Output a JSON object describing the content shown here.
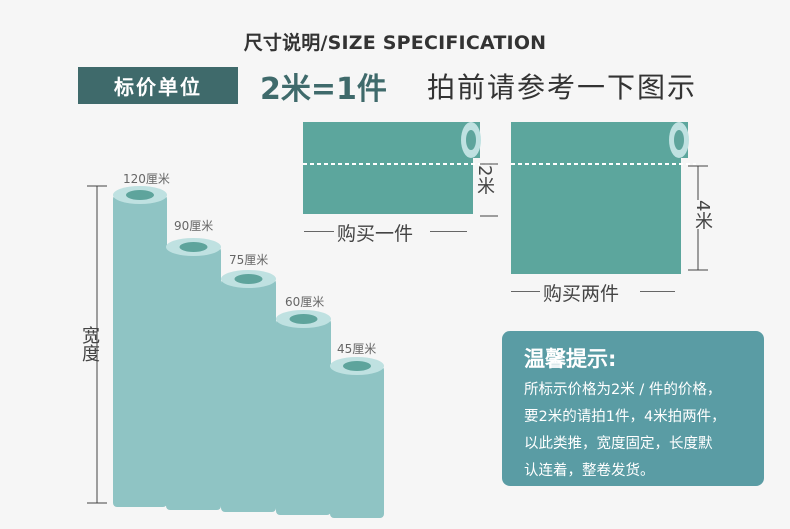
{
  "title": "尺寸说明/SIZE SPECIFICATION",
  "unit": {
    "badge": "标价单位",
    "equation": "2米=1件",
    "hint": "拍前请参考一下图示"
  },
  "rolls": [
    {
      "label": "120厘米"
    },
    {
      "label": "90厘米"
    },
    {
      "label": "75厘米"
    },
    {
      "label": "60厘米"
    },
    {
      "label": "45厘米"
    }
  ],
  "width_label": "宽度",
  "sheets": [
    {
      "length_label": "2米",
      "caption": "购买一件"
    },
    {
      "length_label": "4米",
      "caption": "购买两件"
    }
  ],
  "tip": {
    "title": "温馨提示:",
    "text": "所标示价格为2米 / 件的价格，\n要2米的请拍1件，4米拍两件，\n以此类推，宽度固定，长度默\n认连着，整卷发货。"
  },
  "colors": {
    "roll_body": "#8fc4c4",
    "roll_top": "#bfe1e1",
    "roll_hole": "#5ea49c",
    "sheet": "#5ca69d",
    "badge": "#3f6a6b",
    "tip_bg": "#5a9ca4"
  }
}
